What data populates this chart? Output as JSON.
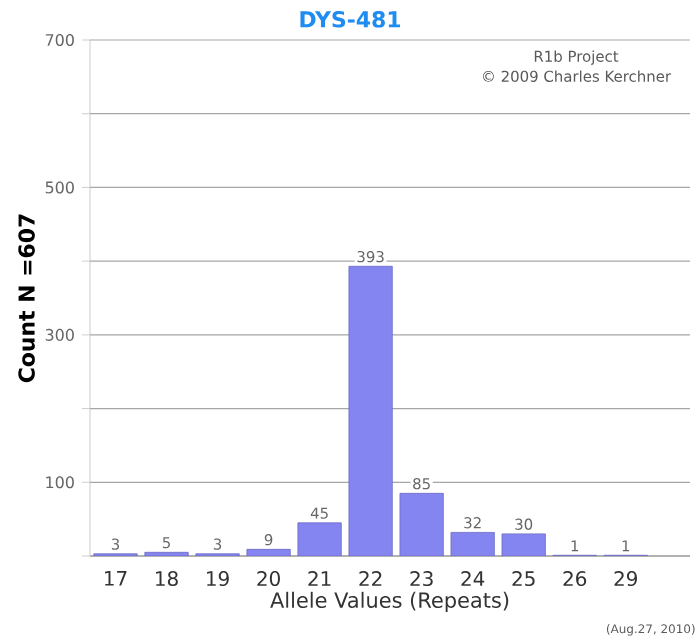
{
  "chart_data": {
    "type": "bar",
    "title": "DYS-481",
    "xlabel": "Allele Values (Repeats)",
    "ylabel": "Count N =607",
    "categories": [
      "17",
      "18",
      "19",
      "20",
      "21",
      "22",
      "23",
      "24",
      "25",
      "26",
      "29"
    ],
    "values": [
      3,
      5,
      3,
      9,
      45,
      393,
      85,
      32,
      30,
      1,
      1
    ],
    "color": "#8585f2",
    "ylim": [
      0,
      700
    ],
    "yticks": [
      {
        "value": 0,
        "label": null
      },
      100,
      {
        "value": 200,
        "label": null
      },
      300,
      {
        "value": 400,
        "label": null
      },
      500,
      {
        "value": 600,
        "label": null
      },
      700
    ],
    "grid": "y",
    "data_labels": true,
    "annotations": [
      "R1b Project",
      "© 2009 Charles Kerchner",
      "(Aug.27, 2010)"
    ]
  }
}
